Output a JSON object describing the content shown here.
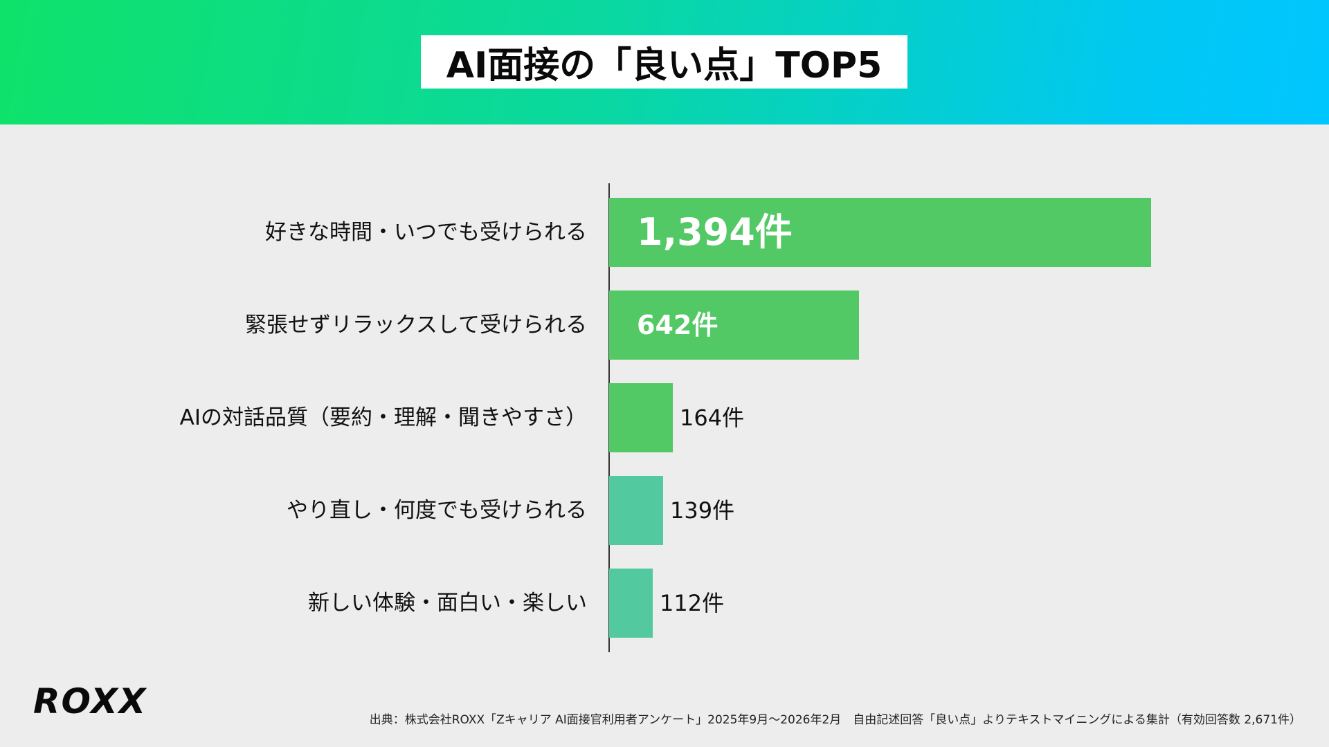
{
  "header": {
    "title": "AI面接の「良い点」TOP5",
    "gradient_colors": [
      "#0fe26a",
      "#00c6ff"
    ]
  },
  "chart_data": {
    "type": "bar",
    "orientation": "horizontal",
    "title": "AI面接の「良い点」TOP5",
    "categories": [
      "好きな時間・いつでも受けられる",
      "緊張せずリラックスして受けられる",
      "AIの対話品質（要約・理解・聞きやすさ）",
      "やり直し・何度でも受けられる",
      "新しい体験・面白い・楽しい"
    ],
    "values": [
      1394,
      642,
      164,
      139,
      112
    ],
    "value_labels": [
      "1,394件",
      "642件",
      "164件",
      "139件",
      "112件"
    ],
    "bar_colors": [
      "#52c965",
      "#52c965",
      "#52c965",
      "#52c99e",
      "#52c99e"
    ],
    "xlim": [
      0,
      1394
    ],
    "grid": false,
    "legend": "none"
  },
  "footer": {
    "logo": "ROXX",
    "source": "出典：株式会社ROXX「Zキャリア AI面接官利用者アンケート」2025年9月〜2026年2月　自由記述回答「良い点」よりテキストマイニングによる集計（有効回答数 2,671件）"
  }
}
